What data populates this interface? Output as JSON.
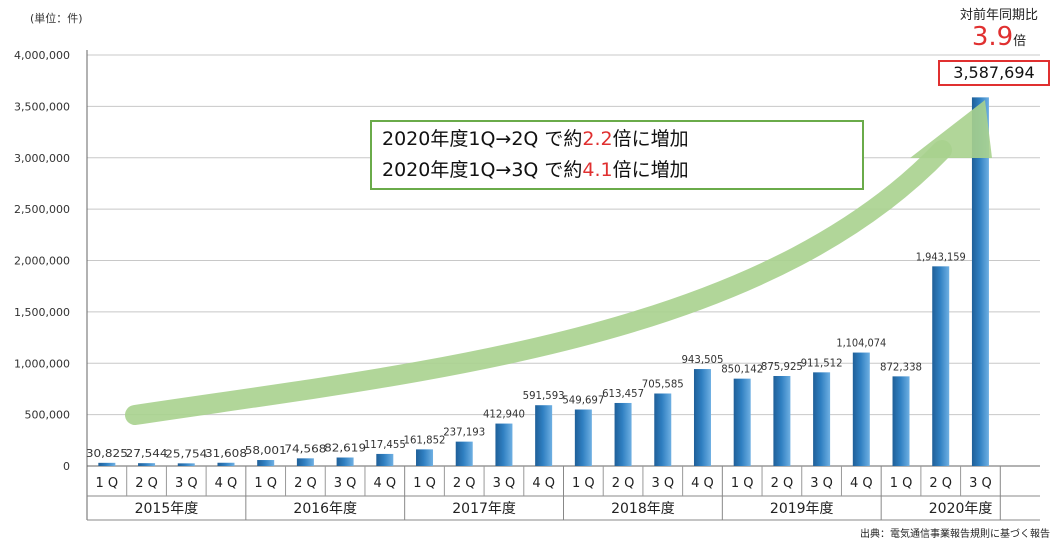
{
  "unit_label": "(単位：件)",
  "yoy": {
    "title": "対前年同期比",
    "multiplier": "3.9",
    "multiplier_unit": "倍",
    "value_label": "3,587,694"
  },
  "callout": {
    "line1_prefix": "2020年度1Q→2Q で約",
    "line1_value": "2.2",
    "line1_suffix": "倍に増加",
    "line2_prefix": "2020年度1Q→3Q で約",
    "line2_value": "4.1",
    "line2_suffix": "倍に増加"
  },
  "source": "出典：電気通信事業報告規則に基づく報告",
  "colors": {
    "bar": "#2f7fc1",
    "arrow": "#a9d18e",
    "highlight": "#e03030",
    "callout_border": "#6aab4a"
  },
  "chart_data": {
    "type": "bar",
    "ylim": [
      0,
      4000000
    ],
    "yticks": [
      "0",
      "500,000",
      "1,000,000",
      "1,500,000",
      "2,000,000",
      "2,500,000",
      "3,000,000",
      "3,500,000",
      "4,000,000"
    ],
    "grid": true,
    "groups": [
      {
        "label": "2015年度",
        "quarters": [
          "1Q",
          "2Q",
          "3Q",
          "4Q"
        ],
        "values": [
          30825,
          27544,
          25754,
          31608
        ],
        "labels": [
          "30,825",
          "27,544",
          "25,754",
          "31,608"
        ]
      },
      {
        "label": "2016年度",
        "quarters": [
          "1Q",
          "2Q",
          "3Q",
          "4Q"
        ],
        "values": [
          58001,
          74568,
          82619,
          117455
        ],
        "labels": [
          "58,001",
          "74,568",
          "82,619",
          "117,455"
        ]
      },
      {
        "label": "2017年度",
        "quarters": [
          "1Q",
          "2Q",
          "3Q",
          "4Q"
        ],
        "values": [
          161852,
          237193,
          412940,
          591593
        ],
        "labels": [
          "161,852",
          "237,193",
          "412,940",
          "591,593"
        ]
      },
      {
        "label": "2018年度",
        "quarters": [
          "1Q",
          "2Q",
          "3Q",
          "4Q"
        ],
        "values": [
          549697,
          613457,
          705585,
          943505
        ],
        "labels": [
          "549,697",
          "613,457",
          "705,585",
          "943,505"
        ]
      },
      {
        "label": "2019年度",
        "quarters": [
          "1Q",
          "2Q",
          "3Q",
          "4Q"
        ],
        "values": [
          850142,
          875925,
          911512,
          1104074
        ],
        "labels": [
          "850,142",
          "875,925",
          "911,512",
          "1,104,074"
        ]
      },
      {
        "label": "2020年度",
        "quarters": [
          "1Q",
          "2Q",
          "3Q"
        ],
        "values": [
          872338,
          1943159,
          3587694
        ],
        "labels": [
          "872,338",
          "1,943,159",
          ""
        ]
      }
    ]
  }
}
